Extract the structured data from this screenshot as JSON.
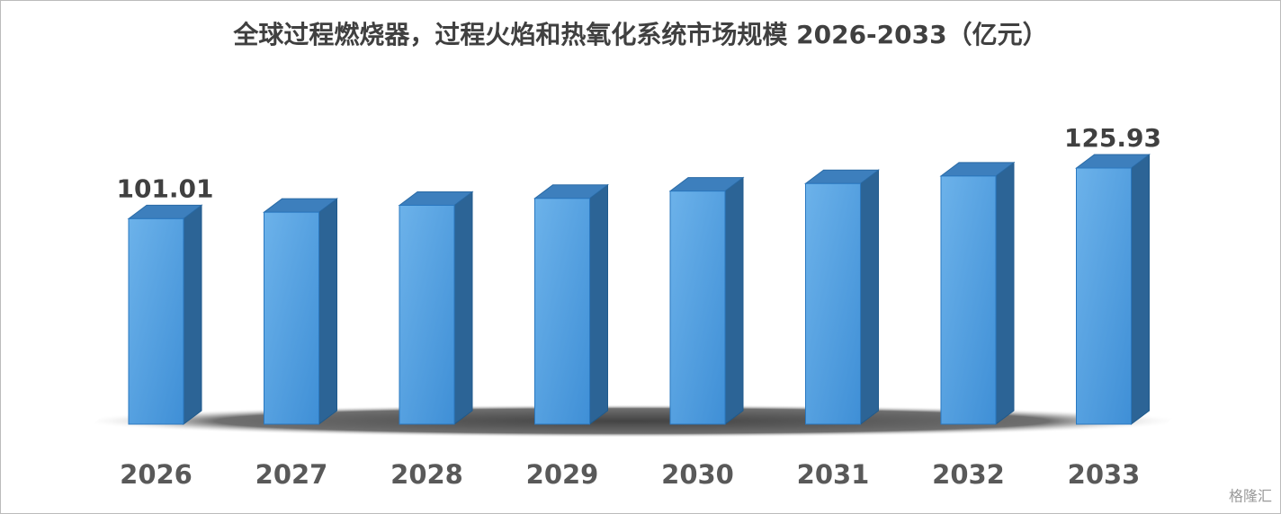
{
  "chart_data": {
    "type": "bar3d",
    "title": "全球过程燃烧器，过程火焰和热氧化系统市场规模 2026-2033（亿元）",
    "categories": [
      "2026",
      "2027",
      "2028",
      "2029",
      "2030",
      "2031",
      "2032",
      "2033"
    ],
    "values": [
      101.01,
      104.2,
      107.6,
      111.0,
      114.6,
      118.3,
      122.0,
      125.93
    ],
    "color": "#5aa5e2"
  },
  "watermark": "格隆汇"
}
